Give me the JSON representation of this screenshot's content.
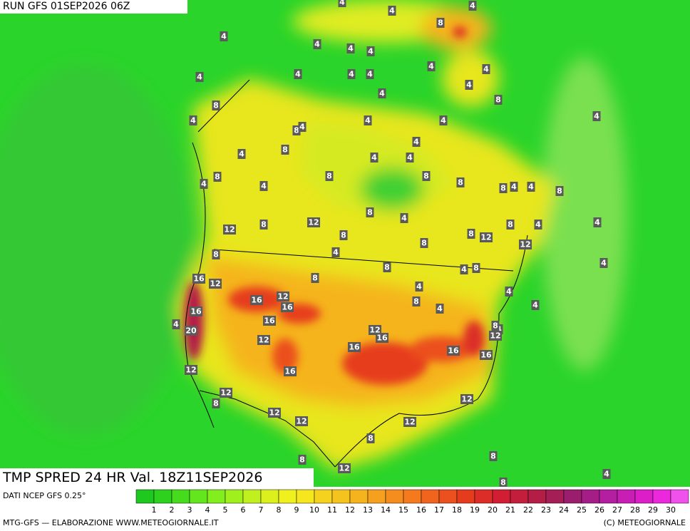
{
  "header": {
    "run": "RUN GFS 01SEP2026 06Z",
    "valid": "TMP SPRED 24 HR Val. 18Z11SEP2026"
  },
  "footer": {
    "source": "DATI NCEP GFS 0.25°",
    "credit": "MTG-GFS — ELABORAZIONE WWW.METEOGIORNALE.IT",
    "copyright": "(C) METEOGIORNALE"
  },
  "colorbar": {
    "values": [
      1,
      2,
      3,
      4,
      5,
      6,
      7,
      8,
      9,
      10,
      11,
      12,
      13,
      14,
      15,
      16,
      17,
      18,
      19,
      20,
      21,
      22,
      23,
      24,
      25,
      26,
      27,
      28,
      29,
      30
    ],
    "colors": [
      "#1ec81e",
      "#2ed21e",
      "#46dc1e",
      "#64e61e",
      "#82ee1e",
      "#a0f01e",
      "#c0f01e",
      "#dcf01e",
      "#f0f01e",
      "#f5e61e",
      "#f5d21e",
      "#f5c31e",
      "#f5b41e",
      "#f5a01e",
      "#f58c1e",
      "#f57a1e",
      "#f0641e",
      "#eb501e",
      "#e63c1e",
      "#dc2d28",
      "#d21e32",
      "#c31e3c",
      "#b41e46",
      "#a51e55",
      "#9b1e6e",
      "#a51e87",
      "#b41ea0",
      "#c81eb4",
      "#dc1ec8",
      "#eb28dc",
      "#f050eb"
    ]
  },
  "map_labels": [
    4,
    4,
    8,
    4,
    4,
    4,
    4,
    4,
    4,
    4,
    4,
    4,
    4,
    4,
    4,
    8,
    8,
    4,
    4,
    4,
    8,
    4,
    4,
    4,
    4,
    4,
    8,
    4,
    4,
    4,
    8,
    4,
    8,
    8,
    8,
    8,
    4,
    4,
    8,
    4,
    8,
    4,
    12,
    12,
    8,
    8,
    8,
    12,
    8,
    4,
    4,
    8,
    12,
    8,
    4,
    8,
    4,
    8,
    4,
    16,
    12,
    8,
    4,
    4,
    16,
    12,
    16,
    16,
    8,
    4,
    4,
    16,
    4,
    20,
    12,
    16,
    8,
    12,
    12,
    16,
    16,
    16,
    16,
    12,
    12,
    8,
    12,
    12,
    12,
    12,
    8,
    8,
    8,
    12,
    4,
    8
  ]
}
